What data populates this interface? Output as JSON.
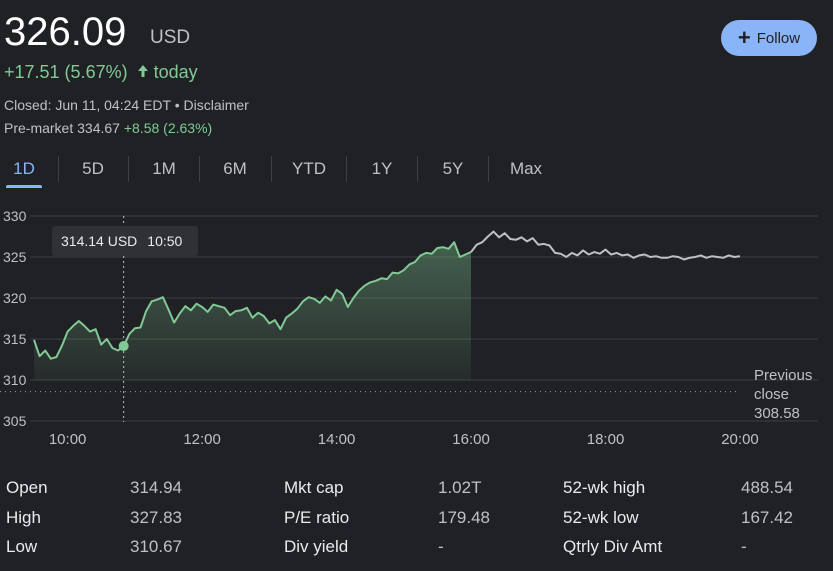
{
  "quote": {
    "price": "326.09",
    "currency": "USD",
    "change": "+17.51 (5.67%)",
    "change_arrow_icon": "arrow-up-icon",
    "change_period": "today",
    "closed_text": "Closed: Jun 11, 04:24 EDT • Disclaimer",
    "premarket_label": "Pre-market 334.67",
    "premarket_change": "+8.58 (2.63%)",
    "positive_color": "#81c995"
  },
  "follow_button": {
    "label": "Follow",
    "icon": "plus-icon"
  },
  "tabs": [
    "1D",
    "5D",
    "1M",
    "6M",
    "YTD",
    "1Y",
    "5Y",
    "Max"
  ],
  "active_tab": "1D",
  "tooltip": {
    "price": "314.14 USD",
    "time": "10:50"
  },
  "previous_close": {
    "line1": "Previous",
    "line2": "close",
    "value": "308.58"
  },
  "chart_data": {
    "type": "line",
    "x_unit": "time of day",
    "xlim": [
      "09:30",
      "20:00"
    ],
    "ylim": [
      305,
      330
    ],
    "yticks": [
      "330",
      "325",
      "320",
      "315",
      "310",
      "305"
    ],
    "xticks": [
      "10:00",
      "12:00",
      "14:00",
      "16:00",
      "18:00",
      "20:00"
    ],
    "grid": true,
    "regular_session_end": "16:00",
    "highlight": {
      "x": "10:50",
      "y": 314.14
    },
    "previous_close": 308.58,
    "series": [
      {
        "x": [
          "09:30",
          "09:35",
          "09:40",
          "09:45",
          "09:50",
          "09:55",
          "10:00",
          "10:05",
          "10:10",
          "10:15",
          "10:20",
          "10:25",
          "10:30",
          "10:35",
          "10:40",
          "10:45",
          "10:50",
          "10:55",
          "11:00",
          "11:05",
          "11:10",
          "11:15",
          "11:20",
          "11:25",
          "11:30",
          "11:35",
          "11:40",
          "11:45",
          "11:50",
          "11:55",
          "12:00",
          "12:05",
          "12:10",
          "12:15",
          "12:20",
          "12:25",
          "12:30",
          "12:35",
          "12:40",
          "12:45",
          "12:50",
          "12:55",
          "13:00",
          "13:05",
          "13:10",
          "13:15",
          "13:20",
          "13:25",
          "13:30",
          "13:35",
          "13:40",
          "13:45",
          "13:50",
          "13:55",
          "14:00",
          "14:05",
          "14:10",
          "14:15",
          "14:20",
          "14:25",
          "14:30",
          "14:35",
          "14:40",
          "14:45",
          "14:50",
          "14:55",
          "15:00",
          "15:05",
          "15:10",
          "15:15",
          "15:20",
          "15:25",
          "15:30",
          "15:35",
          "15:40",
          "15:45",
          "15:50",
          "15:55",
          "16:00"
        ],
        "values": [
          314.9,
          312.9,
          313.6,
          312.6,
          312.8,
          314.2,
          315.9,
          316.6,
          317.2,
          316.6,
          315.9,
          316.2,
          314.3,
          315.0,
          313.9,
          313.6,
          314.14,
          315.6,
          316.3,
          316.4,
          318.4,
          319.6,
          319.8,
          320.1,
          318.6,
          317.0,
          318.1,
          319.0,
          318.5,
          319.3,
          318.9,
          318.3,
          319.2,
          319.0,
          318.8,
          317.9,
          318.4,
          318.5,
          318.8,
          317.6,
          318.2,
          317.8,
          316.9,
          317.3,
          316.2,
          317.6,
          318.1,
          318.7,
          319.6,
          320.1,
          319.9,
          319.4,
          320.2,
          319.7,
          321.0,
          320.5,
          318.9,
          320.0,
          320.9,
          321.5,
          321.9,
          322.1,
          322.4,
          322.3,
          323.1,
          323.0,
          323.4,
          324.1,
          324.4,
          325.2,
          325.5,
          325.4,
          326.1,
          326.2,
          326.0,
          326.8,
          325.0,
          325.3,
          325.6
        ]
      },
      {
        "x": [
          "16:00",
          "16:05",
          "16:10",
          "16:15",
          "16:20",
          "16:25",
          "16:30",
          "16:35",
          "16:40",
          "16:45",
          "16:50",
          "16:55",
          "17:00",
          "17:05",
          "17:10",
          "17:15",
          "17:20",
          "17:25",
          "17:30",
          "17:35",
          "17:40",
          "17:45",
          "17:50",
          "17:55",
          "18:00",
          "18:05",
          "18:10",
          "18:15",
          "18:20",
          "18:25",
          "18:30",
          "18:35",
          "18:40",
          "18:45",
          "18:50",
          "18:55",
          "19:00",
          "19:05",
          "19:10",
          "19:15",
          "19:20",
          "19:25",
          "19:30",
          "19:35",
          "19:40",
          "19:45",
          "19:50",
          "19:55",
          "20:00"
        ],
        "values": [
          325.6,
          326.5,
          326.8,
          327.5,
          328.1,
          327.4,
          327.9,
          327.2,
          327.1,
          327.4,
          326.9,
          327.3,
          326.5,
          326.6,
          326.4,
          325.5,
          325.4,
          325.0,
          325.5,
          325.2,
          325.8,
          325.3,
          325.6,
          325.4,
          325.9,
          325.3,
          325.5,
          325.2,
          325.3,
          324.9,
          325.2,
          325.3,
          325.0,
          325.1,
          324.9,
          324.9,
          325.1,
          325.0,
          324.7,
          324.9,
          325.0,
          325.2,
          324.9,
          325.1,
          325.0,
          324.9,
          325.2,
          325.0,
          325.1
        ]
      }
    ]
  },
  "stats": {
    "col1": [
      {
        "label": "Open",
        "value": "314.94"
      },
      {
        "label": "High",
        "value": "327.83"
      },
      {
        "label": "Low",
        "value": "310.67"
      }
    ],
    "col2": [
      {
        "label": "Mkt cap",
        "value": "1.02T"
      },
      {
        "label": "P/E ratio",
        "value": "179.48"
      },
      {
        "label": "Div yield",
        "value": "-"
      }
    ],
    "col3": [
      {
        "label": "52-wk high",
        "value": "488.54"
      },
      {
        "label": "52-wk low",
        "value": "167.42"
      },
      {
        "label": "Qtrly Div Amt",
        "value": "-"
      }
    ]
  }
}
